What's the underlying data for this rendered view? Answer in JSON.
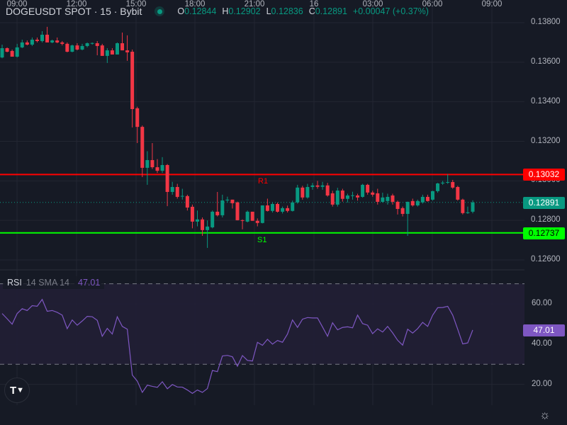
{
  "header": {
    "title": "DOGEUSDT SPOT · 15 · Bybit",
    "market_status_icon": "market-open-dot-icon",
    "ohlc": [
      {
        "key": "O",
        "value": "0.12844"
      },
      {
        "key": "H",
        "value": "0.12902"
      },
      {
        "key": "L",
        "value": "0.12836"
      },
      {
        "key": "C",
        "value": "0.12891"
      }
    ],
    "change": "+0.00047 (+0.37%)"
  },
  "colors": {
    "up": "#089981",
    "down": "#f23645",
    "resistance": "#ff0000",
    "support": "#00ff00",
    "rsi": "#7e57c2",
    "background": "#161a25"
  },
  "chart_data": [
    {
      "type": "candlestick",
      "title": "DOGEUSDT SPOT · 15 · Bybit",
      "interval_minutes": 15,
      "ylim": [
        0.1255,
        0.139
      ],
      "y_ticks": [
        "0.13800",
        "0.13600",
        "0.13400",
        "0.13200",
        "0.13000",
        "0.12800",
        "0.12600"
      ],
      "y_tick_values": [
        0.138,
        0.136,
        0.134,
        0.132,
        0.13,
        0.128,
        0.126
      ],
      "x_ticks": [
        "09:00",
        "12:00",
        "15:00",
        "18:00",
        "21:00",
        "16",
        "03:00",
        "06:00",
        "09:00"
      ],
      "first_candle_time": "08:15",
      "last_price": {
        "value": 0.12891,
        "label": "0.12891"
      },
      "levels": [
        {
          "name": "R1",
          "value": 0.13032,
          "label": "0.13032"
        },
        {
          "name": "S1",
          "value": 0.12737,
          "label": "0.12737"
        }
      ],
      "ohlc": [
        [
          0.13624,
          0.13689,
          0.1362,
          0.13671
        ],
        [
          0.13671,
          0.13675,
          0.1365,
          0.13653
        ],
        [
          0.13657,
          0.13664,
          0.13628,
          0.13628
        ],
        [
          0.13628,
          0.13693,
          0.13624,
          0.13675
        ],
        [
          0.13675,
          0.13714,
          0.13671,
          0.137
        ],
        [
          0.137,
          0.1371,
          0.13685,
          0.13689
        ],
        [
          0.13689,
          0.13725,
          0.13682,
          0.13714
        ],
        [
          0.13714,
          0.13725,
          0.137,
          0.13707
        ],
        [
          0.13707,
          0.13757,
          0.137,
          0.13739
        ],
        [
          0.13739,
          0.13779,
          0.137,
          0.137
        ],
        [
          0.137,
          0.13714,
          0.13696,
          0.1371
        ],
        [
          0.1371,
          0.13725,
          0.13696,
          0.137
        ],
        [
          0.137,
          0.13707,
          0.13685,
          0.13693
        ],
        [
          0.13693,
          0.137,
          0.1365,
          0.13653
        ],
        [
          0.13653,
          0.13689,
          0.1365,
          0.13685
        ],
        [
          0.13685,
          0.13696,
          0.1366,
          0.13664
        ],
        [
          0.13664,
          0.13693,
          0.1366,
          0.13682
        ],
        [
          0.13682,
          0.137,
          0.13675,
          0.13696
        ],
        [
          0.13696,
          0.137,
          0.13689,
          0.13697
        ],
        [
          0.13696,
          0.13707,
          0.13635,
          0.13682
        ],
        [
          0.13685,
          0.13693,
          0.13632,
          0.13632
        ],
        [
          0.13632,
          0.13671,
          0.13596,
          0.1366
        ],
        [
          0.1366,
          0.13671,
          0.13639,
          0.13639
        ],
        [
          0.13639,
          0.137,
          0.13639,
          0.13696
        ],
        [
          0.13696,
          0.1375,
          0.1366,
          0.1366
        ],
        [
          0.1366,
          0.13736,
          0.13607,
          0.1365
        ],
        [
          0.13653,
          0.13664,
          0.1327,
          0.13363
        ],
        [
          0.13367,
          0.13375,
          0.13191,
          0.13273
        ],
        [
          0.13273,
          0.1328,
          0.13019,
          0.13066
        ],
        [
          0.13066,
          0.1315,
          0.1298,
          0.13105
        ],
        [
          0.13105,
          0.13191,
          0.1306,
          0.13069
        ],
        [
          0.13069,
          0.1311,
          0.1304,
          0.13051
        ],
        [
          0.13051,
          0.1312,
          0.1304,
          0.1308
        ],
        [
          0.1308,
          0.13085,
          0.12872,
          0.12944
        ],
        [
          0.12944,
          0.12995,
          0.1293,
          0.12969
        ],
        [
          0.12969,
          0.12985,
          0.1291,
          0.12919
        ],
        [
          0.12923,
          0.1296,
          0.12905,
          0.12924
        ],
        [
          0.12923,
          0.1293,
          0.1285,
          0.12865
        ],
        [
          0.12869,
          0.1288,
          0.1276,
          0.12794
        ],
        [
          0.12794,
          0.1285,
          0.1277,
          0.12805
        ],
        [
          0.12805,
          0.12815,
          0.12722,
          0.12751
        ],
        [
          0.12751,
          0.128,
          0.12661,
          0.12769
        ],
        [
          0.12765,
          0.1285,
          0.1276,
          0.12844
        ],
        [
          0.12844,
          0.12944,
          0.1282,
          0.12826
        ],
        [
          0.12826,
          0.1293,
          0.12815,
          0.12901
        ],
        [
          0.12901,
          0.1292,
          0.1289,
          0.12905
        ],
        [
          0.12905,
          0.12905,
          0.1286,
          0.12887
        ],
        [
          0.12891,
          0.12895,
          0.128,
          0.12801
        ],
        [
          0.12801,
          0.12805,
          0.12755,
          0.12798
        ],
        [
          0.12794,
          0.1285,
          0.1279,
          0.12844
        ],
        [
          0.12844,
          0.12844,
          0.12798,
          0.12798
        ],
        [
          0.12798,
          0.1281,
          0.1277,
          0.12787
        ],
        [
          0.12787,
          0.12876,
          0.12785,
          0.12876
        ],
        [
          0.12876,
          0.1291,
          0.12845,
          0.12848
        ],
        [
          0.12848,
          0.1289,
          0.1284,
          0.12883
        ],
        [
          0.12883,
          0.1289,
          0.1284,
          0.12844
        ],
        [
          0.12844,
          0.1287,
          0.12835,
          0.12862
        ],
        [
          0.12862,
          0.12875,
          0.1284,
          0.12848
        ],
        [
          0.12848,
          0.129,
          0.12845,
          0.12891
        ],
        [
          0.12891,
          0.1298,
          0.12885,
          0.12966
        ],
        [
          0.12966,
          0.12975,
          0.12905,
          0.12916
        ],
        [
          0.12916,
          0.12985,
          0.1291,
          0.12969
        ],
        [
          0.12969,
          0.1299,
          0.12955,
          0.12977
        ],
        [
          0.12977,
          0.13,
          0.1296,
          0.1297
        ],
        [
          0.1297,
          0.12995,
          0.12955,
          0.12977
        ],
        [
          0.12977,
          0.1299,
          0.1292,
          0.12926
        ],
        [
          0.12937,
          0.1295,
          0.1287,
          0.1288
        ],
        [
          0.1288,
          0.12965,
          0.1287,
          0.12951
        ],
        [
          0.12951,
          0.1296,
          0.12895,
          0.12909
        ],
        [
          0.12909,
          0.12935,
          0.1289,
          0.12926
        ],
        [
          0.12926,
          0.12945,
          0.12905,
          0.12927
        ],
        [
          0.12926,
          0.12935,
          0.129,
          0.12916
        ],
        [
          0.12919,
          0.12985,
          0.12915,
          0.1298
        ],
        [
          0.1298,
          0.12985,
          0.1293,
          0.12941
        ],
        [
          0.12941,
          0.1295,
          0.1292,
          0.1293
        ],
        [
          0.12937,
          0.1296,
          0.1288,
          0.12894
        ],
        [
          0.12894,
          0.1294,
          0.1289,
          0.12916
        ],
        [
          0.12898,
          0.12935,
          0.1288,
          0.12919
        ],
        [
          0.12926,
          0.12935,
          0.1288,
          0.12894
        ],
        [
          0.12894,
          0.129,
          0.1283,
          0.12858
        ],
        [
          0.12862,
          0.1287,
          0.1282,
          0.12833
        ],
        [
          0.12833,
          0.12895,
          0.12722,
          0.12894
        ],
        [
          0.12898,
          0.1291,
          0.1287,
          0.12876
        ],
        [
          0.12876,
          0.12905,
          0.1287,
          0.12898
        ],
        [
          0.12891,
          0.1293,
          0.12885,
          0.12919
        ],
        [
          0.12919,
          0.1293,
          0.12895,
          0.12898
        ],
        [
          0.12905,
          0.1295,
          0.129,
          0.12948
        ],
        [
          0.12948,
          0.1299,
          0.1294,
          0.12987
        ],
        [
          0.12987,
          0.13,
          0.1298,
          0.12991
        ],
        [
          0.12991,
          0.13034,
          0.12985,
          0.12994
        ],
        [
          0.12994,
          0.13005,
          0.1296,
          0.12966
        ],
        [
          0.12969,
          0.12975,
          0.129,
          0.12905
        ],
        [
          0.12905,
          0.1291,
          0.1283,
          0.12837
        ],
        [
          0.12837,
          0.1287,
          0.12833,
          0.12841
        ],
        [
          0.12844,
          0.12902,
          0.12836,
          0.12891
        ]
      ]
    },
    {
      "type": "line",
      "title": "RSI",
      "legend": {
        "name": "RSI",
        "params": "14 SMA 14",
        "value": "47.01"
      },
      "ylim": [
        10,
        76
      ],
      "y_ticks": [
        "60.00",
        "40.00",
        "20.00"
      ],
      "y_tick_values": [
        60,
        40,
        20
      ],
      "bands": [
        30,
        70
      ],
      "last_value_label": "47.01",
      "values": [
        55.2,
        52.6,
        49.9,
        55.2,
        57.6,
        56.7,
        59.1,
        58.8,
        62.2,
        56.3,
        56.7,
        55.8,
        54.4,
        47.7,
        52.0,
        49.4,
        51.5,
        53.8,
        53.6,
        51.8,
        43.9,
        47.8,
        45.0,
        53.6,
        48.8,
        47.4,
        24.6,
        21.6,
        16.0,
        19.6,
        19.0,
        18.5,
        21.3,
        17.8,
        19.9,
        18.7,
        18.6,
        17.2,
        15.5,
        17.2,
        16.0,
        17.9,
        26.9,
        26.3,
        34.1,
        34.4,
        33.7,
        29.0,
        34.3,
        31.9,
        31.6,
        40.9,
        39.4,
        42.4,
        40.0,
        41.8,
        40.9,
        45.0,
        52.0,
        48.3,
        52.4,
        53.2,
        53.0,
        53.0,
        48.5,
        43.9,
        50.6,
        47.1,
        48.3,
        48.6,
        48.1,
        54.4,
        50.2,
        49.4,
        45.2,
        47.6,
        46.0,
        48.8,
        45.6,
        41.9,
        39.5,
        47.4,
        45.5,
        47.7,
        50.8,
        48.8,
        54.4,
        58.1,
        58.2,
        58.8,
        54.4,
        47.4,
        40.1,
        40.6,
        47.01
      ]
    }
  ],
  "footer": {
    "logo": "TV",
    "settings_icon": "settings-icon"
  }
}
